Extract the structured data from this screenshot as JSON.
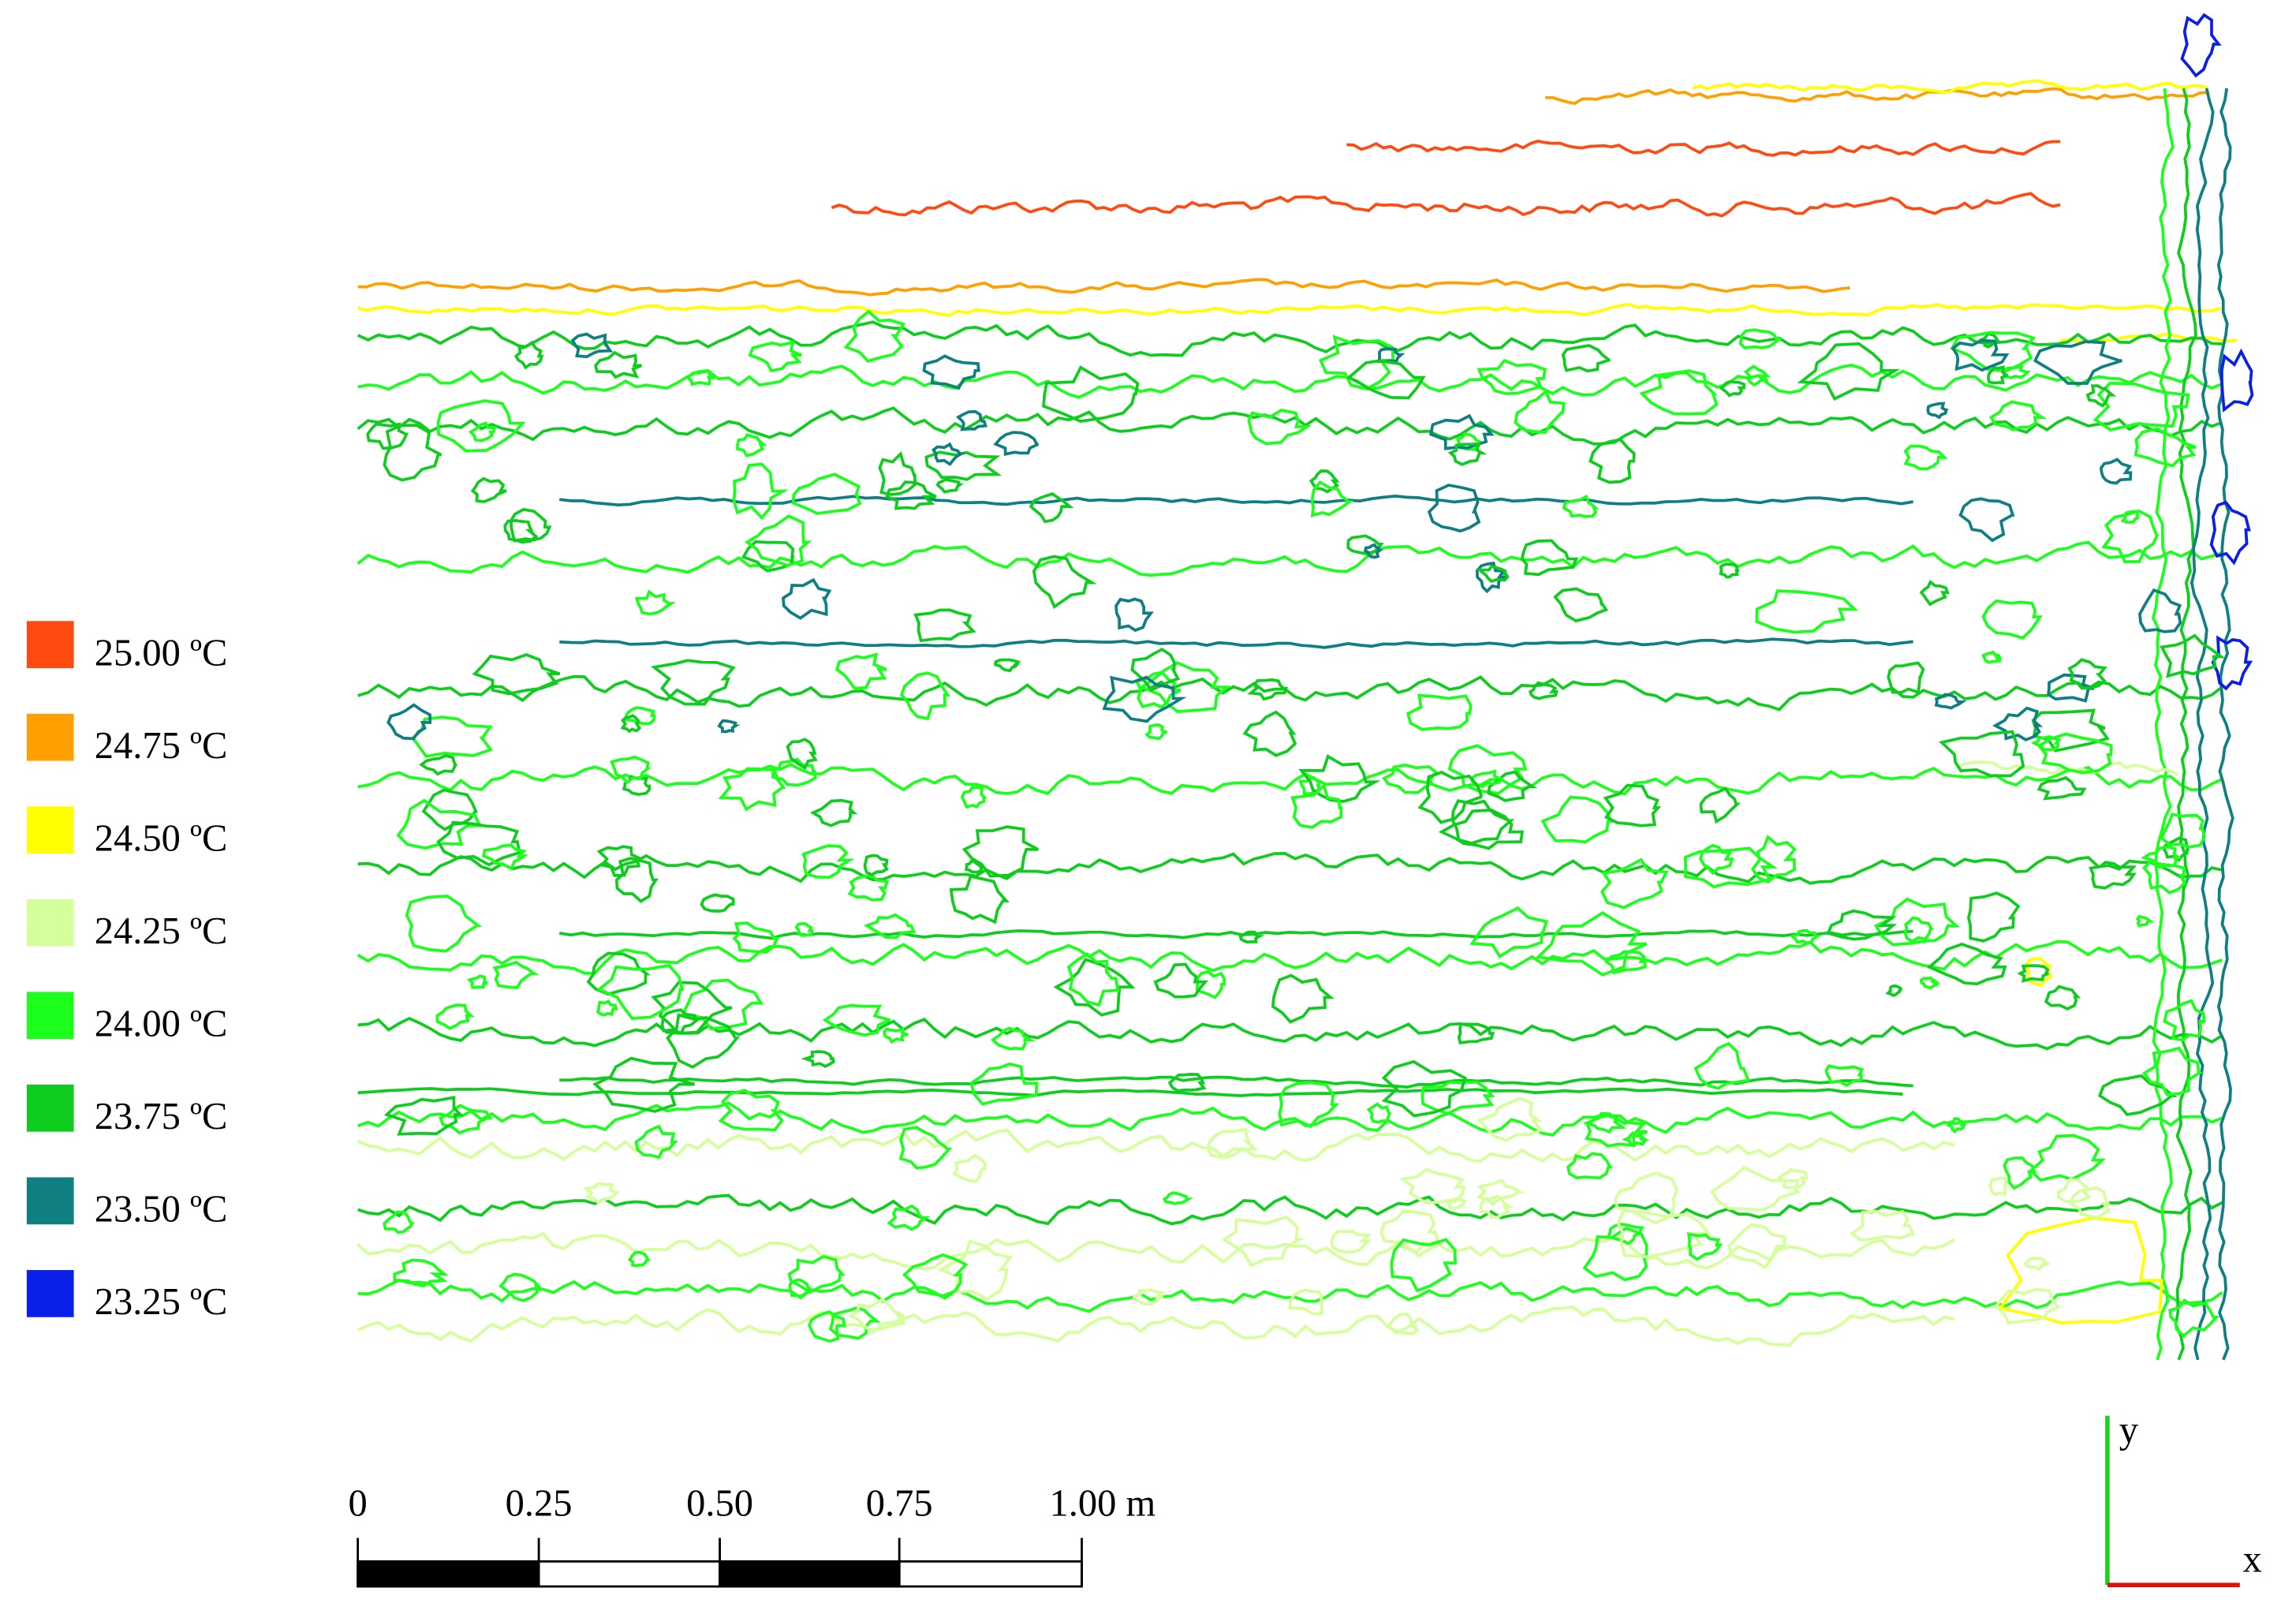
{
  "legend": [
    {
      "label": "25.00 ºC",
      "color": "#ff4a12"
    },
    {
      "label": "24.75 ºC",
      "color": "#ff9f00"
    },
    {
      "label": "24.50 ºC",
      "color": "#ffff00"
    },
    {
      "label": "24.25 ºC",
      "color": "#d4ff9a"
    },
    {
      "label": "24.00 ºC",
      "color": "#1cff1c"
    },
    {
      "label": "23.75 ºC",
      "color": "#0fcc1f"
    },
    {
      "label": "23.50 ºC",
      "color": "#0f7f82"
    },
    {
      "label": "23.25 ºC",
      "color": "#0a1fe8"
    }
  ],
  "scale_bar": {
    "labels": [
      "0",
      "0.25",
      "0.50",
      "0.75",
      "1.00 m"
    ]
  },
  "axes": {
    "y": "y",
    "x": "x",
    "y_color": "#1cd21c",
    "x_color": "#e01010"
  }
}
